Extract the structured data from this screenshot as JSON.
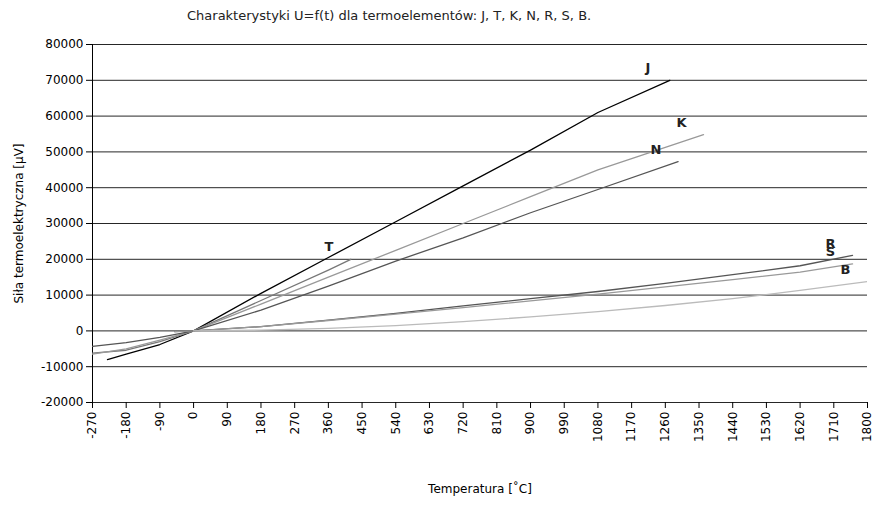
{
  "chart_data": {
    "type": "line",
    "title": "Charakterystyki U=f(t) dla termoelementów: J, T, K, N, R, S, B.",
    "x_label": "Temperatura [˚C]",
    "y_label": "Siła termoelektryczna [µV]",
    "xlim": [
      -270,
      1800
    ],
    "xticks": [
      -270,
      -180,
      -90,
      0,
      90,
      180,
      270,
      360,
      450,
      540,
      630,
      720,
      810,
      900,
      990,
      1080,
      1170,
      1260,
      1350,
      1440,
      1530,
      1620,
      1710,
      1800
    ],
    "ylim": [
      -20000,
      80000
    ],
    "yticks": [
      -20000,
      -10000,
      0,
      10000,
      20000,
      30000,
      40000,
      50000,
      60000,
      70000,
      80000
    ],
    "grid": "y",
    "series": [
      {
        "name": "J",
        "color": "#000000",
        "x": [
          -230,
          -180,
          -90,
          0,
          180,
          360,
          540,
          720,
          900,
          1080,
          1272
        ],
        "values": [
          -8000,
          -6500,
          -3800,
          0,
          10500,
          20500,
          30500,
          40500,
          50500,
          61000,
          70000
        ]
      },
      {
        "name": "T",
        "color": "#777777",
        "x": [
          -270,
          -180,
          -90,
          0,
          180,
          360,
          420
        ],
        "values": [
          -6200,
          -5400,
          -3000,
          0,
          8500,
          17000,
          20000
        ]
      },
      {
        "name": "K",
        "color": "#999999",
        "x": [
          -270,
          -180,
          -90,
          0,
          180,
          360,
          540,
          720,
          900,
          1080,
          1362
        ],
        "values": [
          -6500,
          -5000,
          -2600,
          0,
          7500,
          15000,
          22500,
          30000,
          37500,
          45000,
          54800
        ]
      },
      {
        "name": "N",
        "color": "#555555",
        "x": [
          -270,
          -180,
          -90,
          0,
          180,
          360,
          540,
          720,
          900,
          1080,
          1294
        ],
        "values": [
          -4300,
          -3300,
          -1800,
          0,
          5800,
          12500,
          19500,
          26000,
          33000,
          39500,
          47300
        ]
      },
      {
        "name": "R",
        "color": "#555555",
        "x": [
          -50,
          0,
          180,
          360,
          540,
          720,
          900,
          1080,
          1260,
          1440,
          1620,
          1760
        ],
        "values": [
          -200,
          0,
          1200,
          3000,
          4900,
          7000,
          9000,
          11000,
          13300,
          15700,
          18200,
          21100
        ]
      },
      {
        "name": "S",
        "color": "#999999",
        "x": [
          -50,
          0,
          180,
          360,
          540,
          720,
          900,
          1080,
          1260,
          1440,
          1620,
          1760
        ],
        "values": [
          -200,
          0,
          1200,
          2900,
          4700,
          6500,
          8400,
          10300,
          12300,
          14300,
          16400,
          18700
        ]
      },
      {
        "name": "B",
        "color": "#bbbbbb",
        "x": [
          0,
          180,
          360,
          540,
          720,
          900,
          1080,
          1260,
          1440,
          1620,
          1800
        ],
        "values": [
          0,
          200,
          700,
          1500,
          2600,
          3900,
          5400,
          7100,
          9000,
          11300,
          13800
        ]
      }
    ]
  }
}
